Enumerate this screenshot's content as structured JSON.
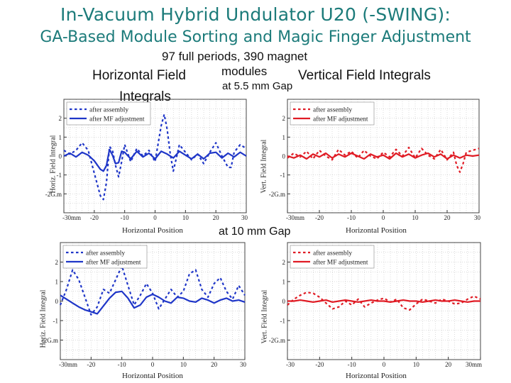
{
  "header": {
    "title": "In-Vacuum Hybrid Undulator U20 (-SWING):",
    "subtitle": "GA-Based Module Sorting and Magic Finger Adjustment",
    "note_line1": "97 full periods, 390 magnet",
    "note_line2": "modules",
    "gap_55": "at 5.5 mm Gap",
    "gap_10": "at 10 mm Gap",
    "left_heading_1": "Horizontal Field",
    "left_heading_2": "Integrals",
    "right_heading": "Vertical Field Integrals"
  },
  "colors": {
    "title": "#1c7b7a",
    "blue": "#1f36c8",
    "red": "#e01b24",
    "grid": "#b9b9b9"
  },
  "chart_data": [
    {
      "id": "h55",
      "type": "line",
      "title": "Horizontal Field Integrals at 5.5 mm Gap",
      "xlabel": "Horizontal Position",
      "ylabel": "Horiz. Field Integral",
      "xlim": [
        -30,
        30
      ],
      "ylim": [
        -3,
        3
      ],
      "xticks": [
        {
          "v": -30,
          "t": "-30mm"
        },
        {
          "v": -20,
          "t": "-20"
        },
        {
          "v": -10,
          "t": "-10"
        },
        {
          "v": 0,
          "t": "0"
        },
        {
          "v": 10,
          "t": "10"
        },
        {
          "v": 20,
          "t": "20"
        },
        {
          "v": 30,
          "t": "30"
        }
      ],
      "yticks": [
        {
          "v": 2,
          "t": "2"
        },
        {
          "v": 1,
          "t": "1"
        },
        {
          "v": 0,
          "t": "0"
        },
        {
          "v": -1,
          "t": "-1"
        },
        {
          "v": -2,
          "t": "-2G.m"
        }
      ],
      "color": "#1f36c8",
      "series": [
        {
          "name": "after assembly",
          "style": "dashed",
          "x": [
            -30,
            -28,
            -26,
            -24,
            -22,
            -20,
            -18,
            -17,
            -16,
            -15,
            -14,
            -13,
            -12,
            -11,
            -10,
            -8,
            -6,
            -4,
            -2,
            0,
            2,
            3,
            4,
            5,
            6,
            8,
            10,
            12,
            14,
            16,
            18,
            20,
            22,
            24,
            25,
            26,
            28,
            30
          ],
          "y": [
            0.3,
            0.1,
            0.3,
            0.7,
            0.3,
            -0.9,
            -2.1,
            -2.3,
            -1.4,
            0.5,
            0.3,
            -0.5,
            -1.1,
            -0.3,
            0.6,
            -0.3,
            0.4,
            0.0,
            0.3,
            -0.3,
            1.6,
            2.2,
            1.4,
            0.1,
            -0.8,
            0.6,
            0.2,
            -0.2,
            0.1,
            -0.4,
            0.2,
            0.7,
            0.0,
            -0.6,
            -0.6,
            0.2,
            0.6,
            0.4
          ]
        },
        {
          "name": "after MF adjustment",
          "style": "solid",
          "x": [
            -30,
            -28,
            -26,
            -24,
            -22,
            -20,
            -18,
            -17,
            -16,
            -15,
            -14,
            -13,
            -12,
            -11,
            -10,
            -8,
            -6,
            -4,
            -2,
            0,
            2,
            4,
            6,
            8,
            10,
            12,
            14,
            16,
            18,
            20,
            22,
            24,
            26,
            28,
            30
          ],
          "y": [
            0.0,
            0.15,
            -0.05,
            0.2,
            0.05,
            -0.25,
            -0.7,
            -0.8,
            -0.5,
            0.35,
            0.05,
            -0.4,
            -0.35,
            0.25,
            0.2,
            -0.15,
            0.25,
            -0.05,
            0.15,
            -0.15,
            0.25,
            0.1,
            -0.1,
            0.25,
            0.05,
            -0.15,
            0.1,
            -0.15,
            0.15,
            0.2,
            -0.1,
            0.15,
            -0.05,
            0.2,
            0.0
          ]
        }
      ]
    },
    {
      "id": "v55",
      "type": "line",
      "title": "Vertical Field Integrals at 5.5 mm Gap",
      "xlabel": "Horizontal Position",
      "ylabel": "Vert. Field Integral",
      "xlim": [
        -30,
        30
      ],
      "ylim": [
        -3,
        3
      ],
      "xticks": [
        {
          "v": -30,
          "t": "-30mm"
        },
        {
          "v": -20,
          "t": "-20"
        },
        {
          "v": -10,
          "t": "-10"
        },
        {
          "v": 0,
          "t": "0"
        },
        {
          "v": 10,
          "t": "10"
        },
        {
          "v": 20,
          "t": "20"
        },
        {
          "v": 30,
          "t": "30"
        }
      ],
      "yticks": [
        {
          "v": 2,
          "t": "2"
        },
        {
          "v": 1,
          "t": "1"
        },
        {
          "v": 0,
          "t": "0"
        },
        {
          "v": -1,
          "t": "-1"
        },
        {
          "v": -2,
          "t": "-2G.m"
        }
      ],
      "color": "#e01b24",
      "series": [
        {
          "name": "after assembly",
          "style": "dashed",
          "x": [
            -30,
            -28,
            -26,
            -24,
            -22,
            -20,
            -18,
            -16,
            -14,
            -12,
            -10,
            -8,
            -6,
            -4,
            -2,
            0,
            2,
            4,
            6,
            8,
            10,
            12,
            14,
            16,
            18,
            20,
            22,
            23,
            24,
            25,
            26,
            28,
            30
          ],
          "y": [
            -0.1,
            0.15,
            -0.05,
            0.25,
            -0.15,
            0.3,
            0.0,
            -0.2,
            0.35,
            0.05,
            0.25,
            -0.1,
            0.3,
            0.0,
            -0.15,
            0.2,
            -0.05,
            0.35,
            0.0,
            0.45,
            -0.1,
            0.4,
            0.05,
            -0.15,
            0.35,
            -0.2,
            0.2,
            -0.5,
            -0.85,
            -0.4,
            0.2,
            0.3,
            0.4
          ]
        },
        {
          "name": "after MF adjustment",
          "style": "solid",
          "x": [
            -30,
            -28,
            -26,
            -24,
            -22,
            -20,
            -18,
            -16,
            -14,
            -12,
            -10,
            -8,
            -6,
            -4,
            -2,
            0,
            2,
            4,
            6,
            8,
            10,
            12,
            14,
            16,
            18,
            20,
            22,
            24,
            26,
            28,
            30
          ],
          "y": [
            0.0,
            -0.1,
            0.05,
            -0.15,
            0.1,
            -0.05,
            0.15,
            -0.1,
            0.1,
            -0.05,
            0.15,
            0.0,
            -0.15,
            0.1,
            -0.05,
            0.05,
            -0.15,
            0.15,
            -0.05,
            0.1,
            -0.1,
            0.05,
            0.15,
            -0.05,
            0.1,
            -0.15,
            0.05,
            -0.1,
            0.05,
            0.0,
            0.05
          ]
        }
      ]
    },
    {
      "id": "h10",
      "type": "line",
      "title": "Horizontal Field Integrals at 10 mm Gap",
      "xlabel": "Horizontal Position",
      "ylabel": "Horiz. Field Integral",
      "xlim": [
        -30,
        30
      ],
      "ylim": [
        -3,
        3
      ],
      "xticks": [
        {
          "v": -30,
          "t": "-30mm"
        },
        {
          "v": -20,
          "t": "-20"
        },
        {
          "v": -10,
          "t": "-10"
        },
        {
          "v": 0,
          "t": "0"
        },
        {
          "v": 10,
          "t": "10"
        },
        {
          "v": 20,
          "t": "20"
        },
        {
          "v": 30,
          "t": "30"
        }
      ],
      "yticks": [
        {
          "v": 2,
          "t": "2"
        },
        {
          "v": 1,
          "t": "1"
        },
        {
          "v": 0,
          "t": "0"
        },
        {
          "v": -1,
          "t": "-1"
        },
        {
          "v": -2,
          "t": "-2G.m"
        }
      ],
      "color": "#1f36c8",
      "series": [
        {
          "name": "after assembly",
          "style": "dashed",
          "x": [
            -30,
            -28,
            -26,
            -24,
            -22,
            -20,
            -18,
            -16,
            -14,
            -12,
            -10,
            -8,
            -6,
            -4,
            -2,
            0,
            2,
            4,
            6,
            8,
            10,
            12,
            14,
            16,
            18,
            20,
            22,
            24,
            26,
            28,
            30
          ],
          "y": [
            -0.2,
            0.6,
            1.6,
            1.1,
            0.2,
            -0.7,
            -0.3,
            0.6,
            0.4,
            1.1,
            1.8,
            0.8,
            -0.2,
            0.3,
            0.9,
            0.4,
            -0.4,
            0.1,
            0.6,
            0.2,
            0.5,
            1.4,
            1.6,
            0.6,
            0.2,
            0.9,
            1.2,
            0.5,
            0.1,
            0.8,
            0.3
          ]
        },
        {
          "name": "after MF adjustment",
          "style": "solid",
          "x": [
            -30,
            -28,
            -26,
            -24,
            -22,
            -20,
            -18,
            -16,
            -14,
            -12,
            -10,
            -8,
            -6,
            -4,
            -2,
            0,
            2,
            4,
            6,
            8,
            10,
            12,
            14,
            16,
            18,
            20,
            22,
            24,
            26,
            28,
            30
          ],
          "y": [
            0.3,
            0.1,
            -0.1,
            -0.3,
            -0.45,
            -0.55,
            -0.65,
            -0.25,
            0.15,
            0.45,
            0.5,
            0.15,
            -0.35,
            -0.2,
            0.2,
            0.35,
            0.2,
            0.0,
            -0.1,
            0.2,
            0.15,
            0.0,
            -0.05,
            0.15,
            0.05,
            -0.1,
            0.05,
            0.15,
            0.0,
            0.05,
            -0.05
          ]
        }
      ]
    },
    {
      "id": "v10",
      "type": "line",
      "title": "Vertical Field Integrals at 10 mm Gap",
      "xlabel": "Horizontal Position",
      "ylabel": "Vert. Field Integral",
      "xlim": [
        -30,
        30
      ],
      "ylim": [
        -3,
        3
      ],
      "xticks": [
        {
          "v": -30,
          "t": "-30"
        },
        {
          "v": -20,
          "t": "-20"
        },
        {
          "v": -10,
          "t": "-10"
        },
        {
          "v": 0,
          "t": "0"
        },
        {
          "v": 10,
          "t": "10"
        },
        {
          "v": 20,
          "t": "20"
        },
        {
          "v": 30,
          "t": "30mm"
        }
      ],
      "yticks": [
        {
          "v": 2,
          "t": "2"
        },
        {
          "v": 1,
          "t": "1"
        },
        {
          "v": 0,
          "t": "0"
        },
        {
          "v": -1,
          "t": "-1"
        },
        {
          "v": -2,
          "t": "-2G.m"
        }
      ],
      "color": "#e01b24",
      "series": [
        {
          "name": "after assembly",
          "style": "dashed",
          "x": [
            -30,
            -28,
            -26,
            -24,
            -22,
            -20,
            -18,
            -16,
            -14,
            -12,
            -10,
            -8,
            -6,
            -4,
            -2,
            0,
            2,
            4,
            6,
            8,
            10,
            12,
            14,
            16,
            18,
            20,
            22,
            24,
            26,
            28,
            30
          ],
          "y": [
            -0.2,
            0.1,
            0.3,
            0.45,
            0.4,
            0.2,
            -0.1,
            -0.4,
            -0.3,
            0.0,
            -0.2,
            0.1,
            -0.3,
            -0.1,
            0.05,
            0.15,
            -0.05,
            0.1,
            -0.35,
            -0.45,
            -0.15,
            0.1,
            0.0,
            -0.1,
            0.1,
            0.0,
            -0.15,
            -0.1,
            0.1,
            0.25,
            0.1
          ]
        },
        {
          "name": "after MF adjustment",
          "style": "solid",
          "x": [
            -30,
            -28,
            -26,
            -24,
            -22,
            -20,
            -18,
            -16,
            -14,
            -12,
            -10,
            -8,
            -6,
            -4,
            -2,
            0,
            2,
            4,
            6,
            8,
            10,
            12,
            14,
            16,
            18,
            20,
            22,
            24,
            26,
            28,
            30
          ],
          "y": [
            0.0,
            0.0,
            0.05,
            0.0,
            -0.05,
            0.0,
            0.05,
            -0.05,
            0.0,
            0.05,
            0.0,
            -0.05,
            0.0,
            0.05,
            0.0,
            0.0,
            -0.05,
            0.0,
            0.05,
            0.0,
            0.0,
            -0.05,
            0.0,
            0.05,
            0.0,
            0.0,
            0.05,
            0.0,
            -0.05,
            0.0,
            0.0
          ]
        }
      ]
    }
  ]
}
